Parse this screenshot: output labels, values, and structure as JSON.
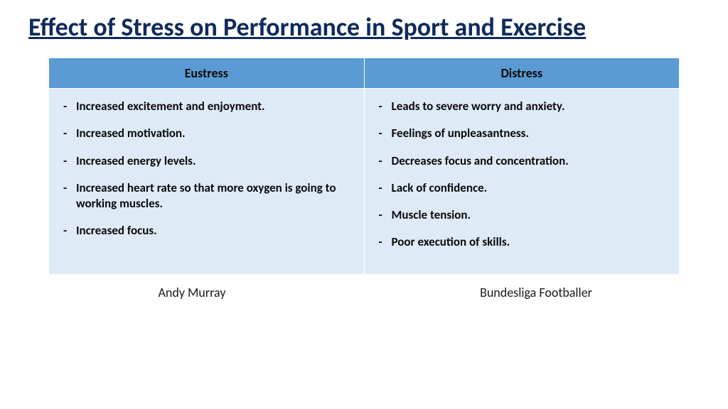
{
  "title": "Effect of Stress on Performance in Sport and Exercise",
  "colors": {
    "title": "#0f2b5b",
    "header_bg": "#5b9bd5",
    "cell_bg": "#deebf7",
    "text": "#0a0a0a",
    "page_bg": "#ffffff"
  },
  "table": {
    "columns": [
      {
        "header": "Eustress"
      },
      {
        "header": "Distress"
      }
    ],
    "rows": [
      {
        "eustress": [
          "Increased excitement and enjoyment.",
          "Increased motivation.",
          "Increased energy levels.",
          "Increased heart rate so that more oxygen is going to working muscles.",
          "Increased focus."
        ],
        "distress": [
          "Leads to severe worry and anxiety.",
          "Feelings of unpleasantness.",
          "Decreases focus and concentration.",
          "Lack of confidence.",
          "Muscle tension.",
          "Poor execution of skills."
        ]
      }
    ]
  },
  "footer": {
    "left": "Andy Murray",
    "right": "Bundesliga Footballer"
  }
}
